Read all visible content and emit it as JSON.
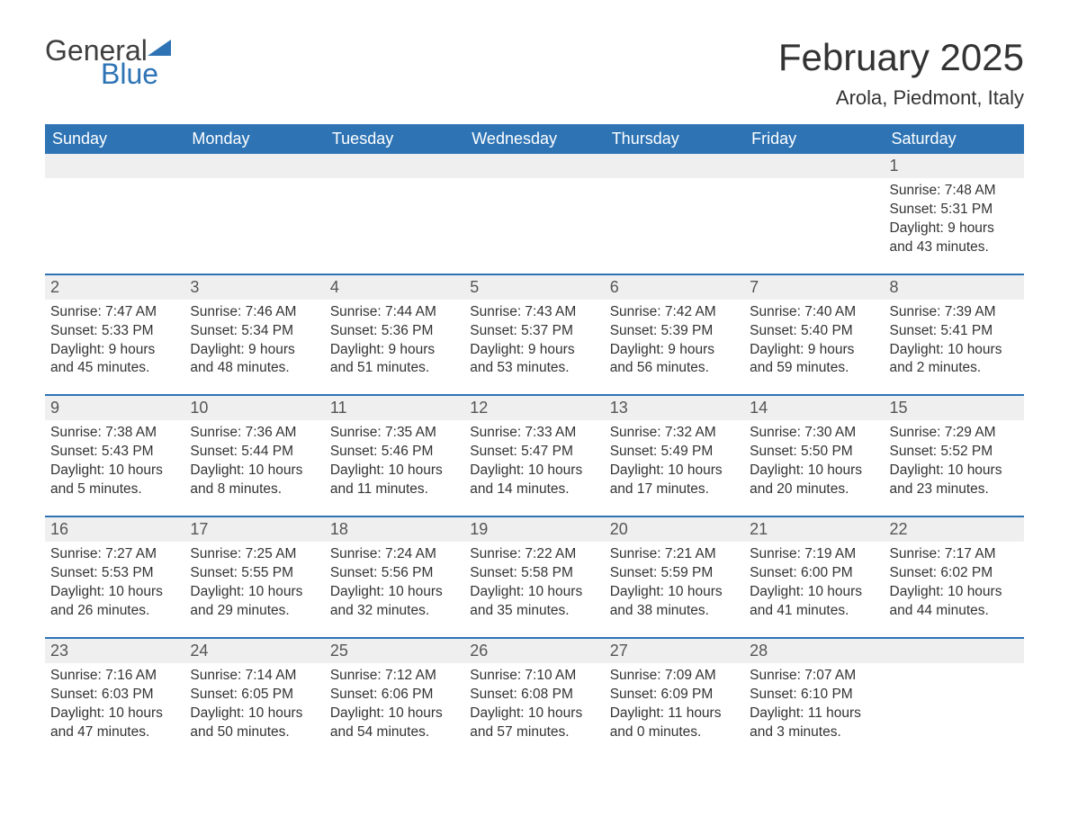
{
  "logo": {
    "general": "General",
    "blue": "Blue",
    "sail_color": "#2e74b5"
  },
  "title": "February 2025",
  "location": "Arola, Piedmont, Italy",
  "colors": {
    "header_bg": "#2e74b5",
    "header_text": "#ffffff",
    "daynum_bg": "#efefef",
    "row_border": "#2e74b5",
    "body_text": "#333333",
    "page_bg": "#ffffff"
  },
  "weekday_headers": [
    "Sunday",
    "Monday",
    "Tuesday",
    "Wednesday",
    "Thursday",
    "Friday",
    "Saturday"
  ],
  "labels": {
    "sunrise": "Sunrise:",
    "sunset": "Sunset:",
    "daylight": "Daylight:"
  },
  "weeks": [
    [
      null,
      null,
      null,
      null,
      null,
      null,
      {
        "day": "1",
        "sunrise": "7:48 AM",
        "sunset": "5:31 PM",
        "daylight": "9 hours and 43 minutes."
      }
    ],
    [
      {
        "day": "2",
        "sunrise": "7:47 AM",
        "sunset": "5:33 PM",
        "daylight": "9 hours and 45 minutes."
      },
      {
        "day": "3",
        "sunrise": "7:46 AM",
        "sunset": "5:34 PM",
        "daylight": "9 hours and 48 minutes."
      },
      {
        "day": "4",
        "sunrise": "7:44 AM",
        "sunset": "5:36 PM",
        "daylight": "9 hours and 51 minutes."
      },
      {
        "day": "5",
        "sunrise": "7:43 AM",
        "sunset": "5:37 PM",
        "daylight": "9 hours and 53 minutes."
      },
      {
        "day": "6",
        "sunrise": "7:42 AM",
        "sunset": "5:39 PM",
        "daylight": "9 hours and 56 minutes."
      },
      {
        "day": "7",
        "sunrise": "7:40 AM",
        "sunset": "5:40 PM",
        "daylight": "9 hours and 59 minutes."
      },
      {
        "day": "8",
        "sunrise": "7:39 AM",
        "sunset": "5:41 PM",
        "daylight": "10 hours and 2 minutes."
      }
    ],
    [
      {
        "day": "9",
        "sunrise": "7:38 AM",
        "sunset": "5:43 PM",
        "daylight": "10 hours and 5 minutes."
      },
      {
        "day": "10",
        "sunrise": "7:36 AM",
        "sunset": "5:44 PM",
        "daylight": "10 hours and 8 minutes."
      },
      {
        "day": "11",
        "sunrise": "7:35 AM",
        "sunset": "5:46 PM",
        "daylight": "10 hours and 11 minutes."
      },
      {
        "day": "12",
        "sunrise": "7:33 AM",
        "sunset": "5:47 PM",
        "daylight": "10 hours and 14 minutes."
      },
      {
        "day": "13",
        "sunrise": "7:32 AM",
        "sunset": "5:49 PM",
        "daylight": "10 hours and 17 minutes."
      },
      {
        "day": "14",
        "sunrise": "7:30 AM",
        "sunset": "5:50 PM",
        "daylight": "10 hours and 20 minutes."
      },
      {
        "day": "15",
        "sunrise": "7:29 AM",
        "sunset": "5:52 PM",
        "daylight": "10 hours and 23 minutes."
      }
    ],
    [
      {
        "day": "16",
        "sunrise": "7:27 AM",
        "sunset": "5:53 PM",
        "daylight": "10 hours and 26 minutes."
      },
      {
        "day": "17",
        "sunrise": "7:25 AM",
        "sunset": "5:55 PM",
        "daylight": "10 hours and 29 minutes."
      },
      {
        "day": "18",
        "sunrise": "7:24 AM",
        "sunset": "5:56 PM",
        "daylight": "10 hours and 32 minutes."
      },
      {
        "day": "19",
        "sunrise": "7:22 AM",
        "sunset": "5:58 PM",
        "daylight": "10 hours and 35 minutes."
      },
      {
        "day": "20",
        "sunrise": "7:21 AM",
        "sunset": "5:59 PM",
        "daylight": "10 hours and 38 minutes."
      },
      {
        "day": "21",
        "sunrise": "7:19 AM",
        "sunset": "6:00 PM",
        "daylight": "10 hours and 41 minutes."
      },
      {
        "day": "22",
        "sunrise": "7:17 AM",
        "sunset": "6:02 PM",
        "daylight": "10 hours and 44 minutes."
      }
    ],
    [
      {
        "day": "23",
        "sunrise": "7:16 AM",
        "sunset": "6:03 PM",
        "daylight": "10 hours and 47 minutes."
      },
      {
        "day": "24",
        "sunrise": "7:14 AM",
        "sunset": "6:05 PM",
        "daylight": "10 hours and 50 minutes."
      },
      {
        "day": "25",
        "sunrise": "7:12 AM",
        "sunset": "6:06 PM",
        "daylight": "10 hours and 54 minutes."
      },
      {
        "day": "26",
        "sunrise": "7:10 AM",
        "sunset": "6:08 PM",
        "daylight": "10 hours and 57 minutes."
      },
      {
        "day": "27",
        "sunrise": "7:09 AM",
        "sunset": "6:09 PM",
        "daylight": "11 hours and 0 minutes."
      },
      {
        "day": "28",
        "sunrise": "7:07 AM",
        "sunset": "6:10 PM",
        "daylight": "11 hours and 3 minutes."
      },
      null
    ]
  ]
}
